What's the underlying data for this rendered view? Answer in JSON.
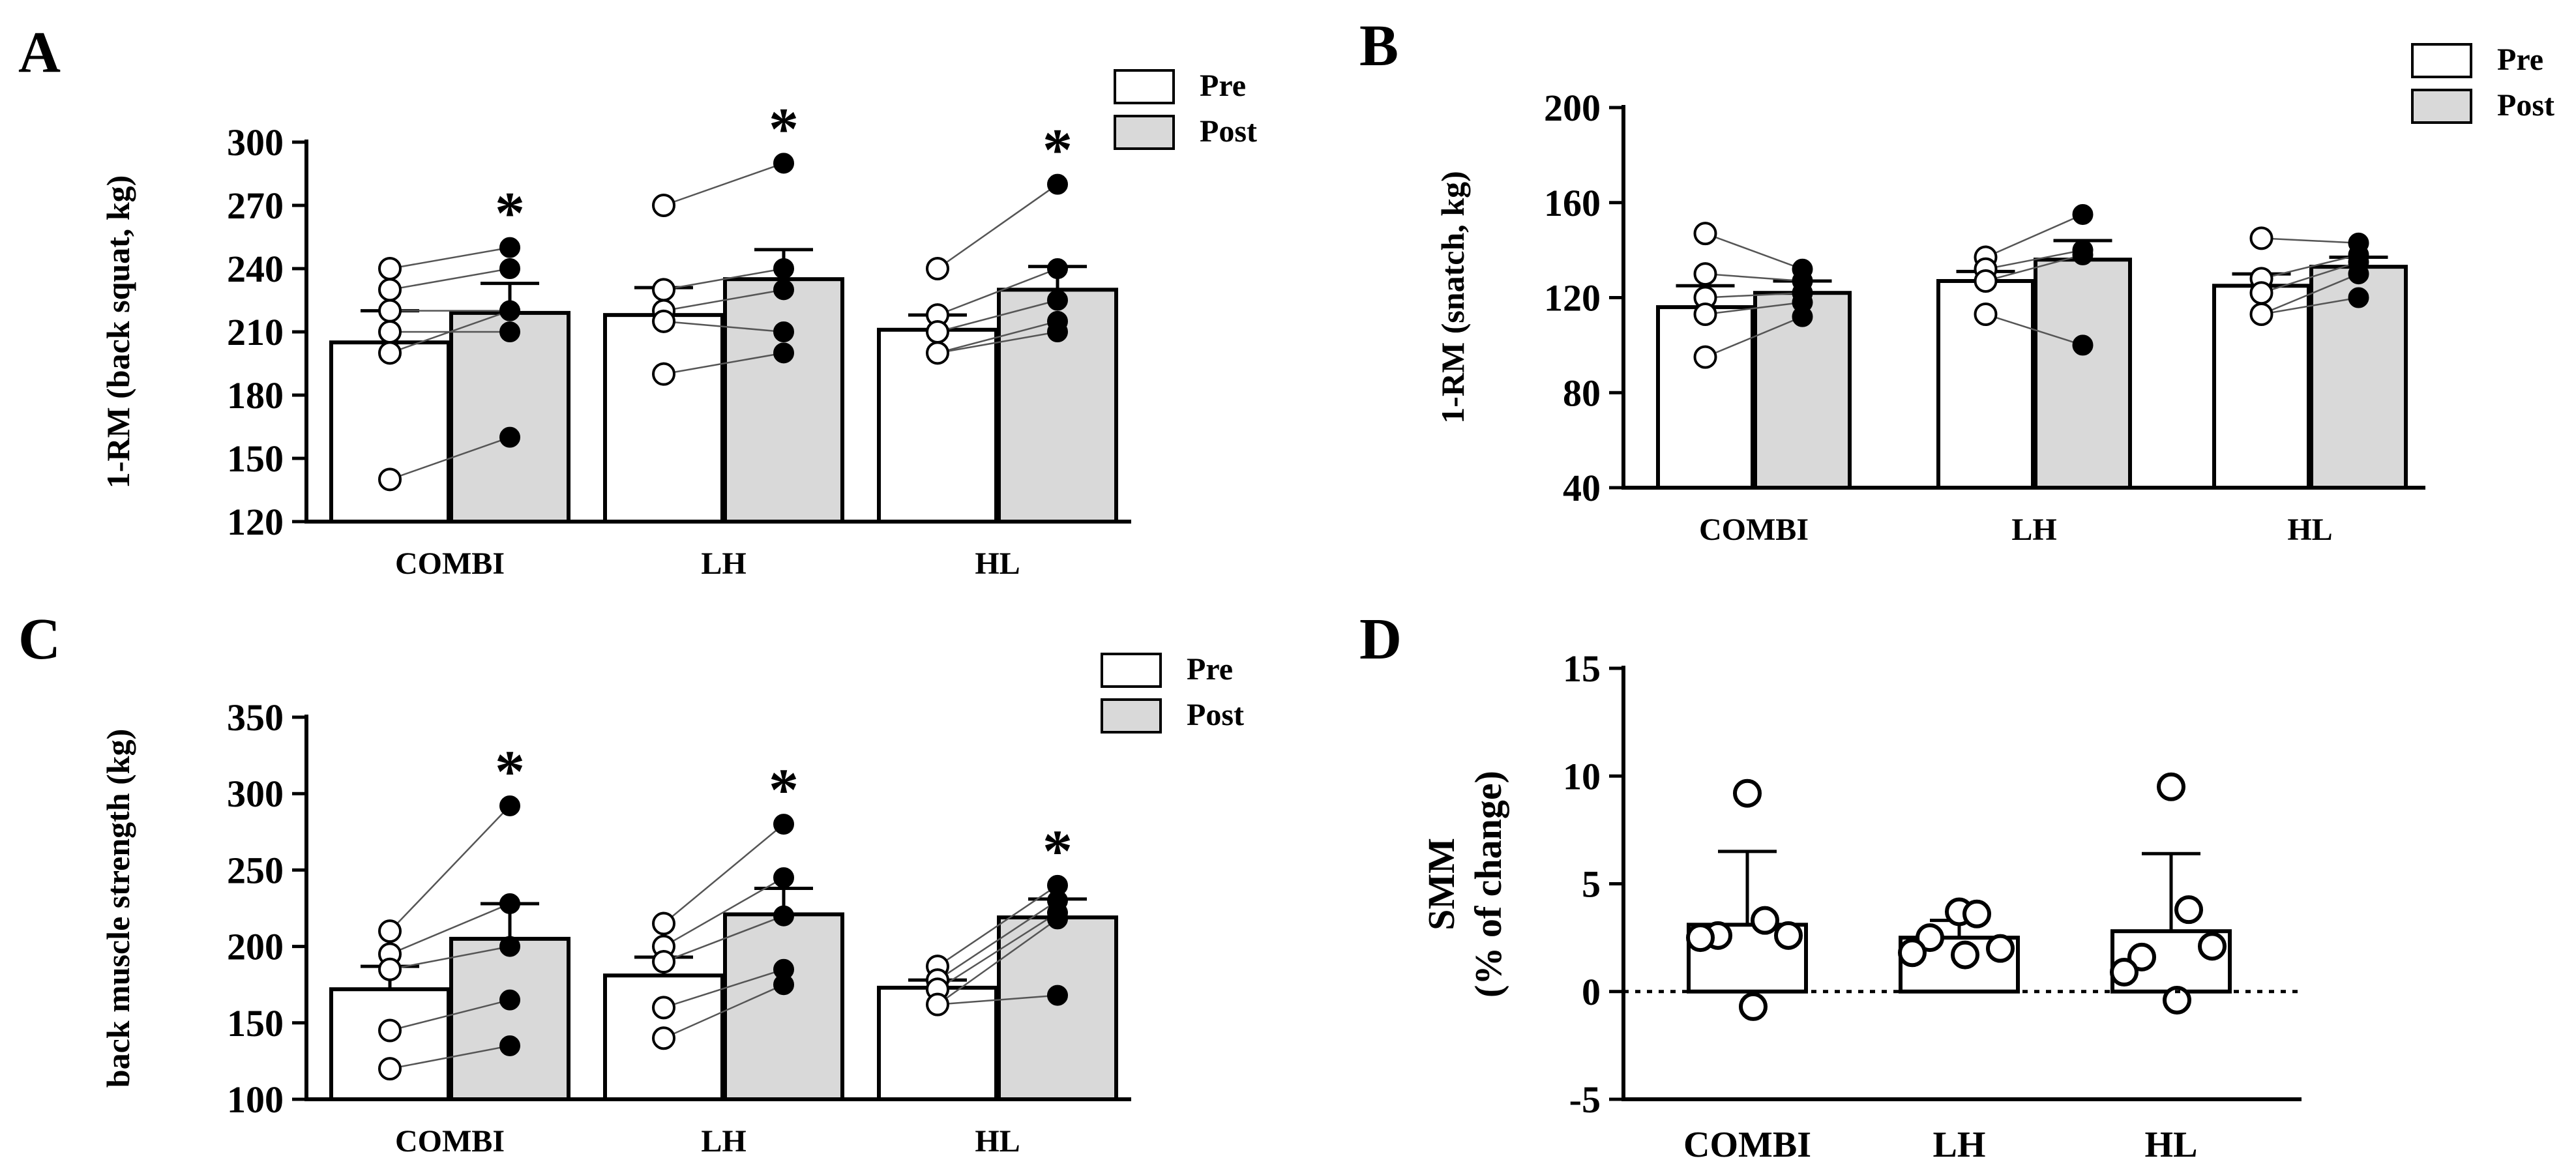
{
  "colors": {
    "pre_fill": "#ffffff",
    "post_fill": "#d9d9d9",
    "ink": "#000000",
    "line": "#555555"
  },
  "chart_data": [
    {
      "panel": "A",
      "type": "bar",
      "ylabel": "1-RM (back squat, kg)",
      "ylim": [
        120,
        300
      ],
      "yticks": [
        120,
        150,
        180,
        210,
        240,
        270,
        300
      ],
      "categories": [
        "COMBI",
        "LH",
        "HL"
      ],
      "legend": [
        "Pre",
        "Post"
      ],
      "legend_position": "top-right",
      "series": [
        {
          "name": "Pre",
          "values": [
            205,
            218,
            211
          ],
          "errors": [
            15,
            13,
            7
          ]
        },
        {
          "name": "Post",
          "values": [
            219,
            235,
            230
          ],
          "errors": [
            14,
            14,
            11
          ]
        }
      ],
      "individual": [
        {
          "pre": [
            240,
            230,
            220,
            210,
            200,
            140
          ],
          "post": [
            250,
            240,
            220,
            210,
            220,
            160
          ]
        },
        {
          "pre": [
            270,
            230,
            220,
            215,
            190
          ],
          "post": [
            290,
            240,
            230,
            210,
            200
          ]
        },
        {
          "pre": [
            240,
            218,
            210,
            200
          ],
          "post": [
            280,
            240,
            225,
            215,
            210
          ]
        }
      ],
      "annotations": [
        "*",
        "*",
        "*"
      ],
      "significant": [
        true,
        true,
        true
      ]
    },
    {
      "panel": "B",
      "type": "bar",
      "ylabel": "1-RM (snatch, kg)",
      "ylim": [
        40,
        200
      ],
      "yticks": [
        40,
        80,
        120,
        160,
        200
      ],
      "categories": [
        "COMBI",
        "LH",
        "HL"
      ],
      "legend": [
        "Pre",
        "Post"
      ],
      "legend_position": "top-right",
      "series": [
        {
          "name": "Pre",
          "values": [
            116,
            127,
            125
          ],
          "errors": [
            9,
            4,
            5
          ]
        },
        {
          "name": "Post",
          "values": [
            122,
            136,
            133
          ],
          "errors": [
            5,
            8,
            4
          ]
        }
      ],
      "individual": [
        {
          "pre": [
            147,
            130,
            120,
            113,
            95
          ],
          "post": [
            132,
            127,
            122,
            118,
            112
          ]
        },
        {
          "pre": [
            137,
            132,
            127,
            113
          ],
          "post": [
            155,
            140,
            138,
            100
          ]
        },
        {
          "pre": [
            145,
            128,
            122,
            113
          ],
          "post": [
            143,
            138,
            135,
            130,
            120
          ]
        }
      ],
      "annotations": [
        "",
        "",
        ""
      ],
      "significant": [
        false,
        false,
        false
      ]
    },
    {
      "panel": "C",
      "type": "bar",
      "ylabel": "back muscle strength (kg)",
      "ylim": [
        100,
        350
      ],
      "yticks": [
        100,
        150,
        200,
        250,
        300,
        350
      ],
      "categories": [
        "COMBI",
        "LH",
        "HL"
      ],
      "legend": [
        "Pre",
        "Post"
      ],
      "legend_position": "top-right",
      "series": [
        {
          "name": "Pre",
          "values": [
            172,
            181,
            173
          ],
          "errors": [
            15,
            12,
            5
          ]
        },
        {
          "name": "Post",
          "values": [
            205,
            221,
            219
          ],
          "errors": [
            23,
            17,
            12
          ]
        }
      ],
      "individual": [
        {
          "pre": [
            210,
            195,
            185,
            145,
            120
          ],
          "post": [
            292,
            228,
            200,
            165,
            135
          ]
        },
        {
          "pre": [
            215,
            200,
            190,
            160,
            140
          ],
          "post": [
            280,
            245,
            220,
            185,
            175
          ]
        },
        {
          "pre": [
            187,
            178,
            172,
            162
          ],
          "post": [
            240,
            230,
            222,
            218,
            168
          ]
        }
      ],
      "annotations": [
        "*",
        "*",
        "*"
      ],
      "significant": [
        true,
        true,
        true
      ]
    },
    {
      "panel": "D",
      "type": "bar",
      "ylabel": [
        "SMM",
        "(% of change)"
      ],
      "ylim": [
        -5,
        15
      ],
      "yticks": [
        -5,
        0,
        5,
        10,
        15
      ],
      "categories": [
        "COMBI",
        "LH",
        "HL"
      ],
      "series": [
        {
          "name": "SMM",
          "values": [
            3.1,
            2.5,
            2.8
          ],
          "errors": [
            3.4,
            0.8,
            3.6
          ]
        }
      ],
      "individual": [
        [
          9.2,
          3.3,
          2.6,
          2.6,
          2.5,
          -0.7
        ],
        [
          3.7,
          3.6,
          2.5,
          2.0,
          1.8,
          1.7
        ],
        [
          9.5,
          3.8,
          1.6,
          2.1,
          0.9,
          -0.4
        ]
      ],
      "reference_line": 0
    }
  ]
}
